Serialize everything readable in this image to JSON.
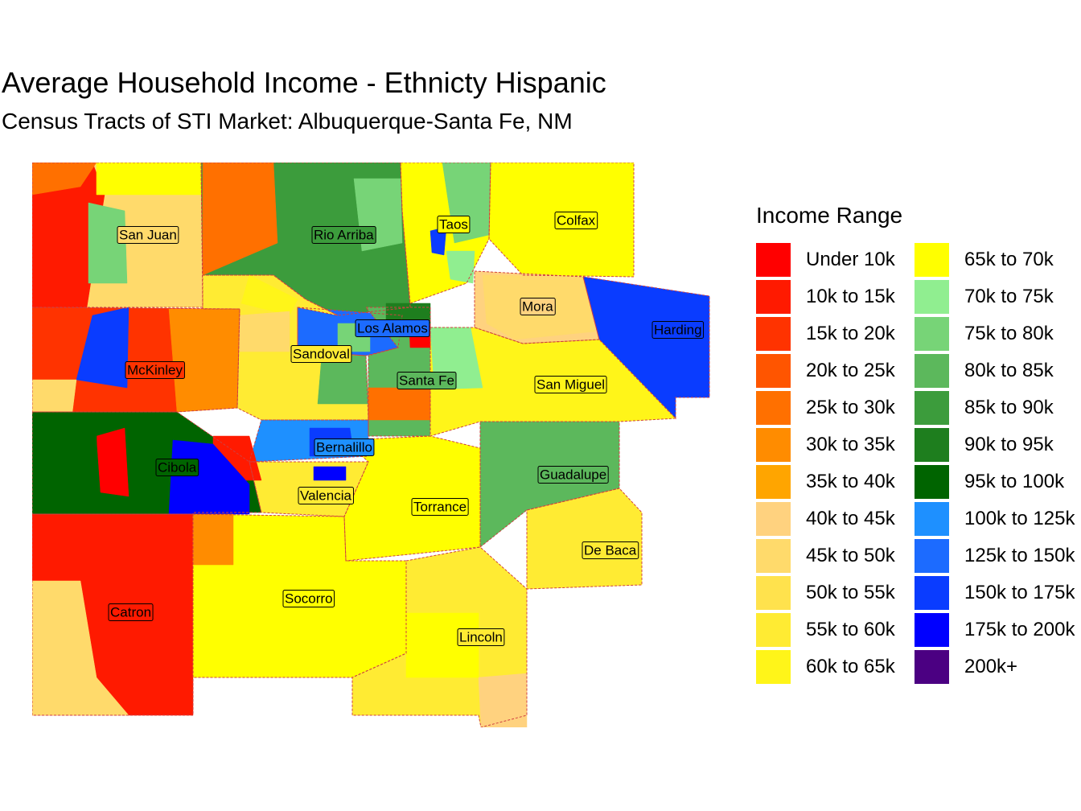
{
  "title": "Average Household Income - Ethnicty Hispanic",
  "subtitle": "Census Tracts of STI Market: Albuquerque-Santa Fe, NM",
  "legend": {
    "title": "Income Range",
    "items": [
      {
        "label": "Under 10k",
        "color": "#FF0000"
      },
      {
        "label": "10k to 15k",
        "color": "#FF1A00"
      },
      {
        "label": "15k to 20k",
        "color": "#FF3300"
      },
      {
        "label": "20k to 25k",
        "color": "#FF5500"
      },
      {
        "label": "25k to 30k",
        "color": "#FF7000"
      },
      {
        "label": "30k to 35k",
        "color": "#FF8C00"
      },
      {
        "label": "35k to 40k",
        "color": "#FFA500"
      },
      {
        "label": "40k to 45k",
        "color": "#FFD27F"
      },
      {
        "label": "45k to 50k",
        "color": "#FFDA6B"
      },
      {
        "label": "50k to 55k",
        "color": "#FFE24D"
      },
      {
        "label": "55k to 60k",
        "color": "#FFEB33"
      },
      {
        "label": "60k to 65k",
        "color": "#FFF519"
      },
      {
        "label": "65k to 70k",
        "color": "#FFFF00"
      },
      {
        "label": "70k to 75k",
        "color": "#90EE90"
      },
      {
        "label": "75k to 80k",
        "color": "#77D477"
      },
      {
        "label": "80k to 85k",
        "color": "#5CB85C"
      },
      {
        "label": "85k to 90k",
        "color": "#3C9C3C"
      },
      {
        "label": "90k to 95k",
        "color": "#1E7E1E"
      },
      {
        "label": "95k to 100k",
        "color": "#006400"
      },
      {
        "label": "100k to 125k",
        "color": "#1E90FF"
      },
      {
        "label": "125k to 150k",
        "color": "#1C6BFF"
      },
      {
        "label": "150k to 175k",
        "color": "#0A3CFF"
      },
      {
        "label": "175k to 200k",
        "color": "#0000FF"
      },
      {
        "label": "200k+",
        "color": "#4B0082"
      }
    ]
  },
  "counties": [
    {
      "name": "San Juan",
      "bin": "45k to 50k"
    },
    {
      "name": "Rio Arriba",
      "bin": "85k to 90k"
    },
    {
      "name": "Taos",
      "bin": "65k to 70k"
    },
    {
      "name": "Colfax",
      "bin": "65k to 70k"
    },
    {
      "name": "Mora",
      "bin": "40k to 45k"
    },
    {
      "name": "Harding",
      "bin": "150k to 175k"
    },
    {
      "name": "Los Alamos",
      "bin": "125k to 150k"
    },
    {
      "name": "Sandoval",
      "bin": "55k to 60k"
    },
    {
      "name": "McKinley",
      "bin": "15k to 20k"
    },
    {
      "name": "Santa Fe",
      "bin": "80k to 85k"
    },
    {
      "name": "San Miguel",
      "bin": "60k to 65k"
    },
    {
      "name": "Bernalillo",
      "bin": "100k to 125k"
    },
    {
      "name": "Cibola",
      "bin": "95k to 100k"
    },
    {
      "name": "Guadalupe",
      "bin": "80k to 85k"
    },
    {
      "name": "Valencia",
      "bin": "55k to 60k"
    },
    {
      "name": "Torrance",
      "bin": "65k to 70k"
    },
    {
      "name": "De Baca",
      "bin": "55k to 60k"
    },
    {
      "name": "Catron",
      "bin": "10k to 15k"
    },
    {
      "name": "Socorro",
      "bin": "65k to 70k"
    },
    {
      "name": "Lincoln",
      "bin": "55k to 60k"
    }
  ]
}
